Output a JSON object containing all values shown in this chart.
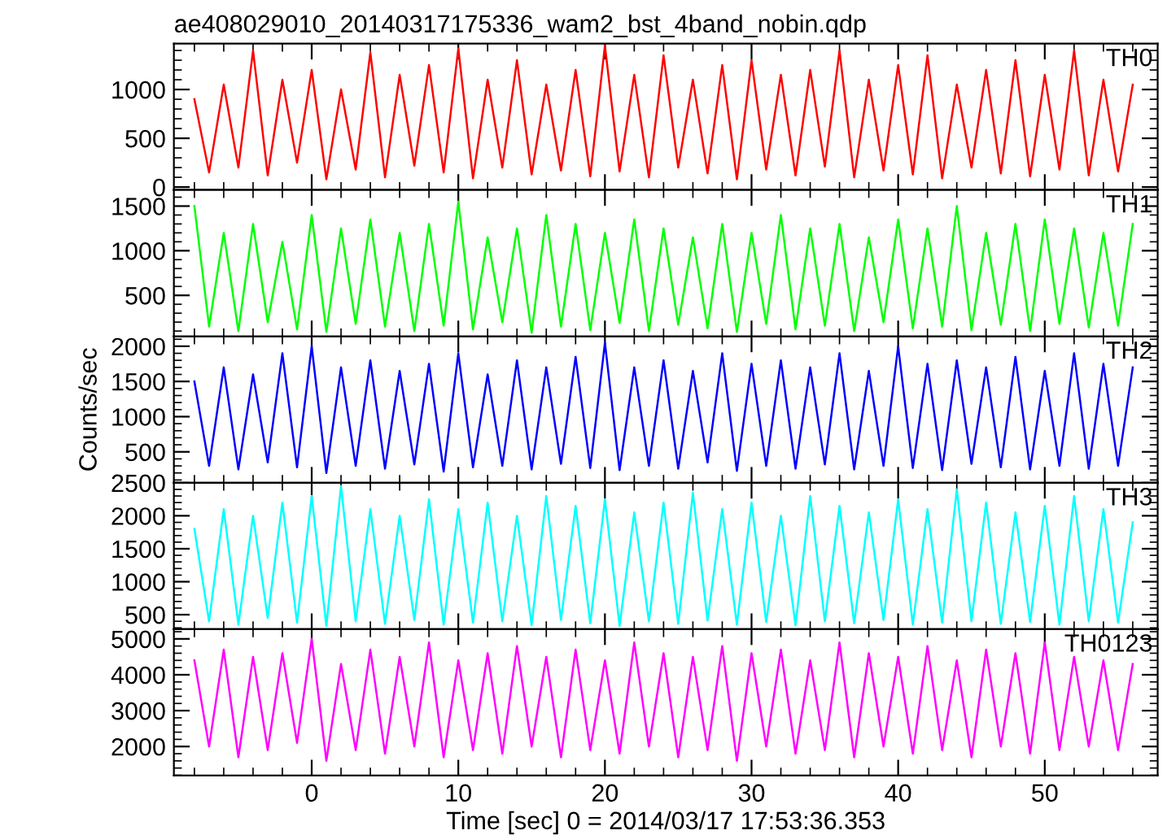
{
  "chart_data": [
    {
      "type": "line",
      "title": "ae408029010_20140317175336_wam2_bst_4band_nobin.qdp",
      "x": [
        -8,
        -7,
        -6,
        -5,
        -4,
        -3,
        -2,
        -1,
        0,
        1,
        2,
        3,
        4,
        5,
        6,
        7,
        8,
        9,
        10,
        11,
        12,
        13,
        14,
        15,
        16,
        17,
        18,
        19,
        20,
        21,
        22,
        23,
        24,
        25,
        26,
        27,
        28,
        29,
        30,
        31,
        32,
        33,
        34,
        35,
        36,
        37,
        38,
        39,
        40,
        41,
        42,
        43,
        44,
        45,
        46,
        47,
        48,
        49,
        50,
        51,
        52,
        53,
        54,
        55,
        56
      ],
      "xlim": [
        -9.4,
        57.7
      ],
      "xticks": [
        0,
        10,
        20,
        30,
        40,
        50
      ],
      "ylim": [
        -30,
        1470
      ],
      "yticks": [
        0,
        500,
        1000
      ],
      "tick_labels": "y",
      "series": [
        {
          "name": "TH0",
          "color": "#ff0000",
          "values": [
            900,
            150,
            1050,
            200,
            1400,
            120,
            1100,
            250,
            1200,
            80,
            1000,
            180,
            1380,
            100,
            1150,
            220,
            1250,
            150,
            1420,
            90,
            1100,
            200,
            1300,
            130,
            1050,
            170,
            1200,
            110,
            1450,
            160,
            1150,
            100,
            1350,
            200,
            1100,
            140,
            1250,
            80,
            1300,
            180,
            1150,
            120,
            1200,
            210,
            1400,
            100,
            1100,
            170,
            1250,
            130,
            1350,
            90,
            1050,
            200,
            1200,
            140,
            1300,
            110,
            1150,
            180,
            1400,
            120,
            1100,
            160,
            1050
          ]
        }
      ]
    },
    {
      "type": "line",
      "x": [
        -8,
        -7,
        -6,
        -5,
        -4,
        -3,
        -2,
        -1,
        0,
        1,
        2,
        3,
        4,
        5,
        6,
        7,
        8,
        9,
        10,
        11,
        12,
        13,
        14,
        15,
        16,
        17,
        18,
        19,
        20,
        21,
        22,
        23,
        24,
        25,
        26,
        27,
        28,
        29,
        30,
        31,
        32,
        33,
        34,
        35,
        36,
        37,
        38,
        39,
        40,
        41,
        42,
        43,
        44,
        45,
        46,
        47,
        48,
        49,
        50,
        51,
        52,
        53,
        54,
        55,
        56
      ],
      "xlim": [
        -9.4,
        57.7
      ],
      "xticks": [
        0,
        10,
        20,
        30,
        40,
        50
      ],
      "ylim": [
        40,
        1680
      ],
      "yticks": [
        500,
        1000,
        1500
      ],
      "tick_labels": "y",
      "series": [
        {
          "name": "TH1",
          "color": "#00ff00",
          "values": [
            1500,
            150,
            1200,
            100,
            1300,
            200,
            1100,
            120,
            1400,
            90,
            1250,
            180,
            1350,
            150,
            1200,
            100,
            1300,
            160,
            1550,
            120,
            1150,
            200,
            1250,
            80,
            1400,
            150,
            1300,
            110,
            1200,
            190,
            1350,
            100,
            1250,
            170,
            1150,
            130,
            1300,
            90,
            1200,
            180,
            1400,
            120,
            1250,
            160,
            1300,
            100,
            1150,
            200,
            1350,
            130,
            1250,
            150,
            1500,
            110,
            1200,
            170,
            1300,
            100,
            1350,
            180,
            1250,
            140,
            1200,
            160,
            1300
          ]
        }
      ]
    },
    {
      "type": "line",
      "ylabel": "Counts/sec",
      "x": [
        -8,
        -7,
        -6,
        -5,
        -4,
        -3,
        -2,
        -1,
        0,
        1,
        2,
        3,
        4,
        5,
        6,
        7,
        8,
        9,
        10,
        11,
        12,
        13,
        14,
        15,
        16,
        17,
        18,
        19,
        20,
        21,
        22,
        23,
        24,
        25,
        26,
        27,
        28,
        29,
        30,
        31,
        32,
        33,
        34,
        35,
        36,
        37,
        38,
        39,
        40,
        41,
        42,
        43,
        44,
        45,
        46,
        47,
        48,
        49,
        50,
        51,
        52,
        53,
        54,
        55,
        56
      ],
      "xlim": [
        -9.4,
        57.7
      ],
      "xticks": [
        0,
        10,
        20,
        30,
        40,
        50
      ],
      "ylim": [
        60,
        2140
      ],
      "yticks": [
        500,
        1000,
        1500,
        2000
      ],
      "tick_labels": "y",
      "series": [
        {
          "name": "TH2",
          "color": "#0000ff",
          "values": [
            1500,
            300,
            1700,
            250,
            1600,
            350,
            1900,
            280,
            2000,
            200,
            1700,
            300,
            1800,
            260,
            1650,
            320,
            1750,
            220,
            1900,
            280,
            1600,
            300,
            1800,
            250,
            1700,
            330,
            1850,
            270,
            2050,
            240,
            1700,
            300,
            1800,
            260,
            1650,
            350,
            1900,
            230,
            1750,
            300,
            1800,
            260,
            1700,
            320,
            1900,
            250,
            1650,
            300,
            2000,
            270,
            1750,
            240,
            1800,
            330,
            1700,
            280,
            1850,
            250,
            1650,
            300,
            1900,
            260,
            1750,
            300,
            1700
          ]
        }
      ]
    },
    {
      "type": "line",
      "x": [
        -8,
        -7,
        -6,
        -5,
        -4,
        -3,
        -2,
        -1,
        0,
        1,
        2,
        3,
        4,
        5,
        6,
        7,
        8,
        9,
        10,
        11,
        12,
        13,
        14,
        15,
        16,
        17,
        18,
        19,
        20,
        21,
        22,
        23,
        24,
        25,
        26,
        27,
        28,
        29,
        30,
        31,
        32,
        33,
        34,
        35,
        36,
        37,
        38,
        39,
        40,
        41,
        42,
        43,
        44,
        45,
        46,
        47,
        48,
        49,
        50,
        51,
        52,
        53,
        54,
        55,
        56
      ],
      "xlim": [
        -9.4,
        57.7
      ],
      "xticks": [
        0,
        10,
        20,
        30,
        40,
        50
      ],
      "ylim": [
        280,
        2500
      ],
      "yticks": [
        500,
        1000,
        1500,
        2000,
        2500
      ],
      "tick_labels": "y",
      "series": [
        {
          "name": "TH3",
          "color": "#00ffff",
          "values": [
            1800,
            400,
            2100,
            350,
            2000,
            450,
            2200,
            380,
            2300,
            330,
            2450,
            400,
            2100,
            360,
            2000,
            420,
            2250,
            350,
            2100,
            380,
            2200,
            400,
            2000,
            340,
            2300,
            420,
            2150,
            370,
            2250,
            330,
            2050,
            400,
            2200,
            360,
            2350,
            410,
            2100,
            350,
            2200,
            390,
            2000,
            340,
            2300,
            400,
            2150,
            370,
            2050,
            420,
            2250,
            350,
            2100,
            380,
            2400,
            400,
            2200,
            360,
            2050,
            390,
            2150,
            350,
            2300,
            400,
            2100,
            380,
            1900
          ]
        }
      ]
    },
    {
      "type": "line",
      "xlabel": "Time [sec] 0 = 2014/03/17 17:53:36.353",
      "x": [
        -8,
        -7,
        -6,
        -5,
        -4,
        -3,
        -2,
        -1,
        0,
        1,
        2,
        3,
        4,
        5,
        6,
        7,
        8,
        9,
        10,
        11,
        12,
        13,
        14,
        15,
        16,
        17,
        18,
        19,
        20,
        21,
        22,
        23,
        24,
        25,
        26,
        27,
        28,
        29,
        30,
        31,
        32,
        33,
        34,
        35,
        36,
        37,
        38,
        39,
        40,
        41,
        42,
        43,
        44,
        45,
        46,
        47,
        48,
        49,
        50,
        51,
        52,
        53,
        54,
        55,
        56
      ],
      "xlim": [
        -9.4,
        57.7
      ],
      "xticks": [
        0,
        10,
        20,
        30,
        40,
        50
      ],
      "ylim": [
        1190,
        5270
      ],
      "yticks": [
        2000,
        3000,
        4000,
        5000
      ],
      "series": [
        {
          "name": "TH0123",
          "color": "#ff00ff",
          "values": [
            4400,
            2000,
            4700,
            1700,
            4500,
            1900,
            4600,
            2100,
            5000,
            1600,
            4300,
            1900,
            4700,
            1800,
            4500,
            2000,
            4900,
            1700,
            4400,
            1900,
            4600,
            1800,
            4800,
            2000,
            4500,
            1700,
            4700,
            1900,
            4400,
            1800,
            4900,
            2000,
            4600,
            1700,
            4500,
            1900,
            4800,
            1600,
            4600,
            2000,
            4700,
            1800,
            4400,
            1900,
            4900,
            1700,
            4600,
            2000,
            4500,
            1800,
            4800,
            1900,
            4400,
            1700,
            4700,
            2000,
            4600,
            1800,
            4900,
            1900,
            4500,
            2000,
            4400,
            1900,
            4300
          ]
        }
      ]
    }
  ]
}
